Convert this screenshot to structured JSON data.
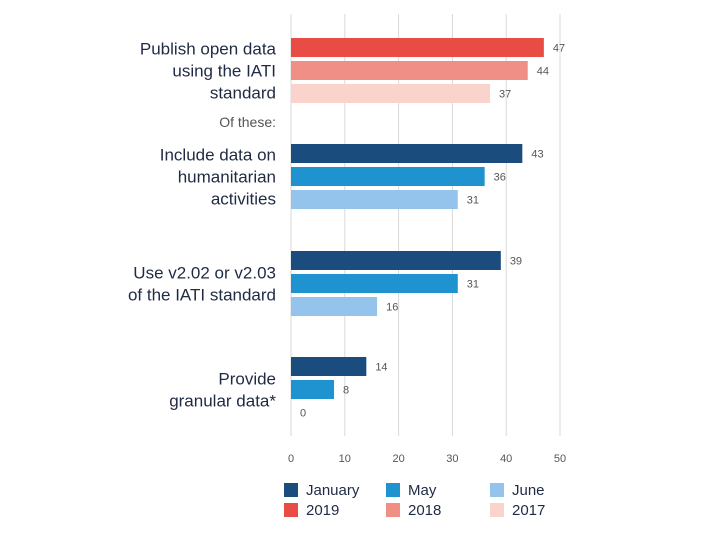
{
  "chart_data": {
    "type": "bar",
    "orientation": "horizontal",
    "xlim": [
      0,
      50
    ],
    "xticks": [
      0,
      10,
      20,
      30,
      40,
      50
    ],
    "grid": true,
    "legend_position": "bottom",
    "separator_label": "Of these:",
    "groups": [
      {
        "label": "Publish open data using the IATI standard",
        "label_lines": [
          "Publish open data",
          "using the IATI",
          "standard"
        ],
        "bars": [
          {
            "series": "2019",
            "value": 47,
            "color": "#e84c44"
          },
          {
            "series": "2018",
            "value": 44,
            "color": "#f08f86"
          },
          {
            "series": "2017",
            "value": 37,
            "color": "#f9d3cc"
          }
        ]
      },
      {
        "label": "Include data on humanitarian activities",
        "label_lines": [
          "Include data on",
          "humanitarian",
          "activities"
        ],
        "bars": [
          {
            "series": "January",
            "value": 43,
            "color": "#1b4c7e"
          },
          {
            "series": "May",
            "value": 36,
            "color": "#1e93cf"
          },
          {
            "series": "June",
            "value": 31,
            "color": "#94c4ec"
          }
        ]
      },
      {
        "label": "Use v2.02 or v2.03 of the IATI standard",
        "label_lines": [
          "Use v2.02 or v2.03",
          "of the IATI standard"
        ],
        "bars": [
          {
            "series": "January",
            "value": 39,
            "color": "#1b4c7e"
          },
          {
            "series": "May",
            "value": 31,
            "color": "#1e93cf"
          },
          {
            "series": "June",
            "value": 16,
            "color": "#94c4ec"
          }
        ]
      },
      {
        "label": "Provide granular data*",
        "label_lines": [
          "Provide",
          "granular data*"
        ],
        "bars": [
          {
            "series": "January",
            "value": 14,
            "color": "#1b4c7e"
          },
          {
            "series": "May",
            "value": 8,
            "color": "#1e93cf"
          },
          {
            "series": "June",
            "value": 0,
            "color": "#94c4ec"
          }
        ]
      }
    ],
    "legend": [
      {
        "label": "January",
        "color": "#1b4c7e"
      },
      {
        "label": "May",
        "color": "#1e93cf"
      },
      {
        "label": "June",
        "color": "#94c4ec"
      },
      {
        "label": "2019",
        "color": "#e84c44"
      },
      {
        "label": "2018",
        "color": "#f08f86"
      },
      {
        "label": "2017",
        "color": "#f9d3cc"
      }
    ],
    "colors": {
      "label_text": "#1f2a44",
      "value_text": "#555555",
      "grid": "#d9d9d9",
      "separator_text": "#555555"
    }
  }
}
